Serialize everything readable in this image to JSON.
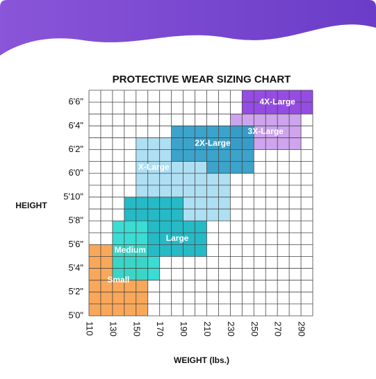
{
  "chart_data": {
    "type": "size-regions",
    "title": "PROTECTIVE WEAR SIZING CHART",
    "x_label": "WEIGHT (lbs.)",
    "y_label": "HEIGHT",
    "xlim": [
      110,
      300
    ],
    "xticks": [
      110,
      130,
      150,
      170,
      190,
      210,
      230,
      250,
      270,
      290
    ],
    "ylim": [
      60,
      79
    ],
    "yticks": [
      {
        "value": 60,
        "label": "5'0\""
      },
      {
        "value": 62,
        "label": "5'2\""
      },
      {
        "value": 64,
        "label": "5'4\""
      },
      {
        "value": 66,
        "label": "5'6\""
      },
      {
        "value": 68,
        "label": "5'8\""
      },
      {
        "value": 70,
        "label": "5'10\""
      },
      {
        "value": 72,
        "label": "6'0\""
      },
      {
        "value": 74,
        "label": "6'2\""
      },
      {
        "value": 76,
        "label": "6'4\""
      },
      {
        "value": 78,
        "label": "6'6\""
      }
    ],
    "grid": true,
    "sizes": [
      {
        "name": "Small",
        "color": "#f8a14c",
        "rects": [
          [
            110,
            160,
            60,
            66
          ]
        ]
      },
      {
        "name": "Medium",
        "color": "#2ad9d0",
        "rects": [
          [
            130,
            160,
            63,
            68
          ],
          [
            160,
            170,
            63,
            65
          ]
        ]
      },
      {
        "name": "Large",
        "color": "#14b4c2",
        "rects": [
          [
            140,
            190,
            68,
            70
          ],
          [
            160,
            210,
            65,
            68
          ]
        ]
      },
      {
        "name": "X-Large",
        "color": "#a8dcf2",
        "rects": [
          [
            150,
            180,
            70,
            75
          ],
          [
            180,
            210,
            72,
            73
          ],
          [
            180,
            230,
            70,
            72
          ],
          [
            190,
            230,
            68,
            70
          ]
        ]
      },
      {
        "name": "3X-Large",
        "color": "#c99ceb",
        "rects": [
          [
            230,
            290,
            74,
            77
          ]
        ]
      },
      {
        "name": "2X-Large",
        "color": "#2b9bc5",
        "rects": [
          [
            180,
            250,
            73,
            76
          ],
          [
            210,
            250,
            72,
            73
          ]
        ]
      },
      {
        "name": "4X-Large",
        "color": "#8c3de0",
        "rects": [
          [
            240,
            300,
            77,
            79
          ]
        ]
      }
    ]
  }
}
